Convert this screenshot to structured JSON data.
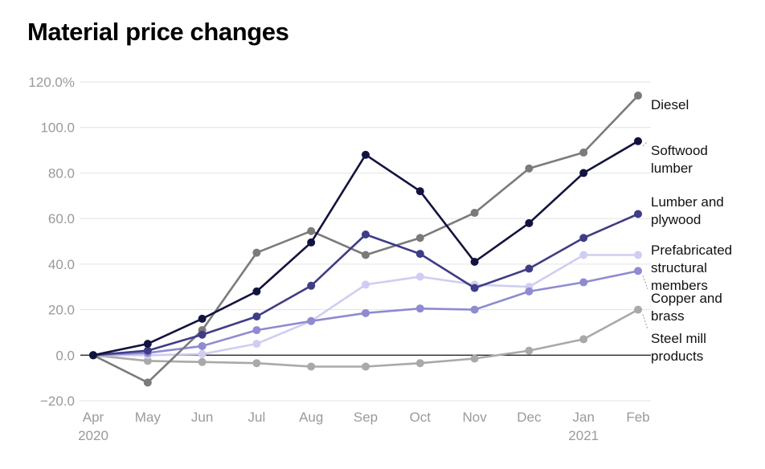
{
  "chart_data": {
    "type": "line",
    "title": "Material price changes",
    "xlabel": "",
    "ylabel": "",
    "categories": [
      "Apr",
      "May",
      "Jun",
      "Jul",
      "Aug",
      "Sep",
      "Oct",
      "Nov",
      "Dec",
      "Jan",
      "Feb"
    ],
    "year_labels": [
      {
        "category": "Apr",
        "text": "2020"
      },
      {
        "category": "Jan",
        "text": "2021"
      }
    ],
    "ylim": [
      -20,
      120
    ],
    "yticks": [
      {
        "value": 120,
        "label": "120.0%"
      },
      {
        "value": 100,
        "label": "100.0"
      },
      {
        "value": 80,
        "label": "80.0"
      },
      {
        "value": 60,
        "label": "60.0"
      },
      {
        "value": 40,
        "label": "40.0"
      },
      {
        "value": 20,
        "label": "20.0"
      },
      {
        "value": 0,
        "label": "0.0"
      },
      {
        "value": -20,
        "label": "−20.0"
      }
    ],
    "grid": true,
    "legend": "direct labels at right end of lines",
    "series": [
      {
        "name": "Diesel",
        "color": "#7b7b7b",
        "values": [
          0,
          -12,
          11,
          45,
          54.5,
          44,
          51.5,
          62.5,
          82,
          89,
          114
        ]
      },
      {
        "name": "Softwood lumber",
        "color": "#13133f",
        "values": [
          0,
          5,
          16,
          28,
          49.5,
          88,
          72,
          41,
          58,
          80,
          94
        ]
      },
      {
        "name": "Lumber and plywood",
        "color": "#3f3d86",
        "values": [
          0,
          2,
          9,
          17,
          30.5,
          53,
          44.5,
          29.5,
          38,
          51.5,
          62
        ]
      },
      {
        "name": "Prefabricated structural members",
        "color": "#cfcdf1",
        "values": [
          0,
          0,
          0.5,
          5,
          15,
          31,
          34.5,
          31,
          30,
          44,
          44
        ]
      },
      {
        "name": "Copper and brass",
        "color": "#8e8bd1",
        "values": [
          0,
          1,
          4,
          11,
          15,
          18.5,
          20.5,
          20,
          28,
          32,
          37
        ]
      },
      {
        "name": "Steel mill products",
        "color": "#a9a9a9",
        "values": [
          0,
          -2.5,
          -3,
          -3.5,
          -5,
          -5,
          -3.5,
          -1.5,
          2,
          7,
          20
        ]
      }
    ],
    "series_labels": [
      {
        "lines": [
          "Diesel"
        ]
      },
      {
        "lines": [
          "Softwood",
          "lumber"
        ]
      },
      {
        "lines": [
          "Lumber and",
          "plywood"
        ]
      },
      {
        "lines": [
          "Prefabricated",
          "structural",
          "members"
        ]
      },
      {
        "lines": [
          "Copper and",
          "brass"
        ]
      },
      {
        "lines": [
          "Steel mill",
          "products"
        ]
      }
    ]
  }
}
